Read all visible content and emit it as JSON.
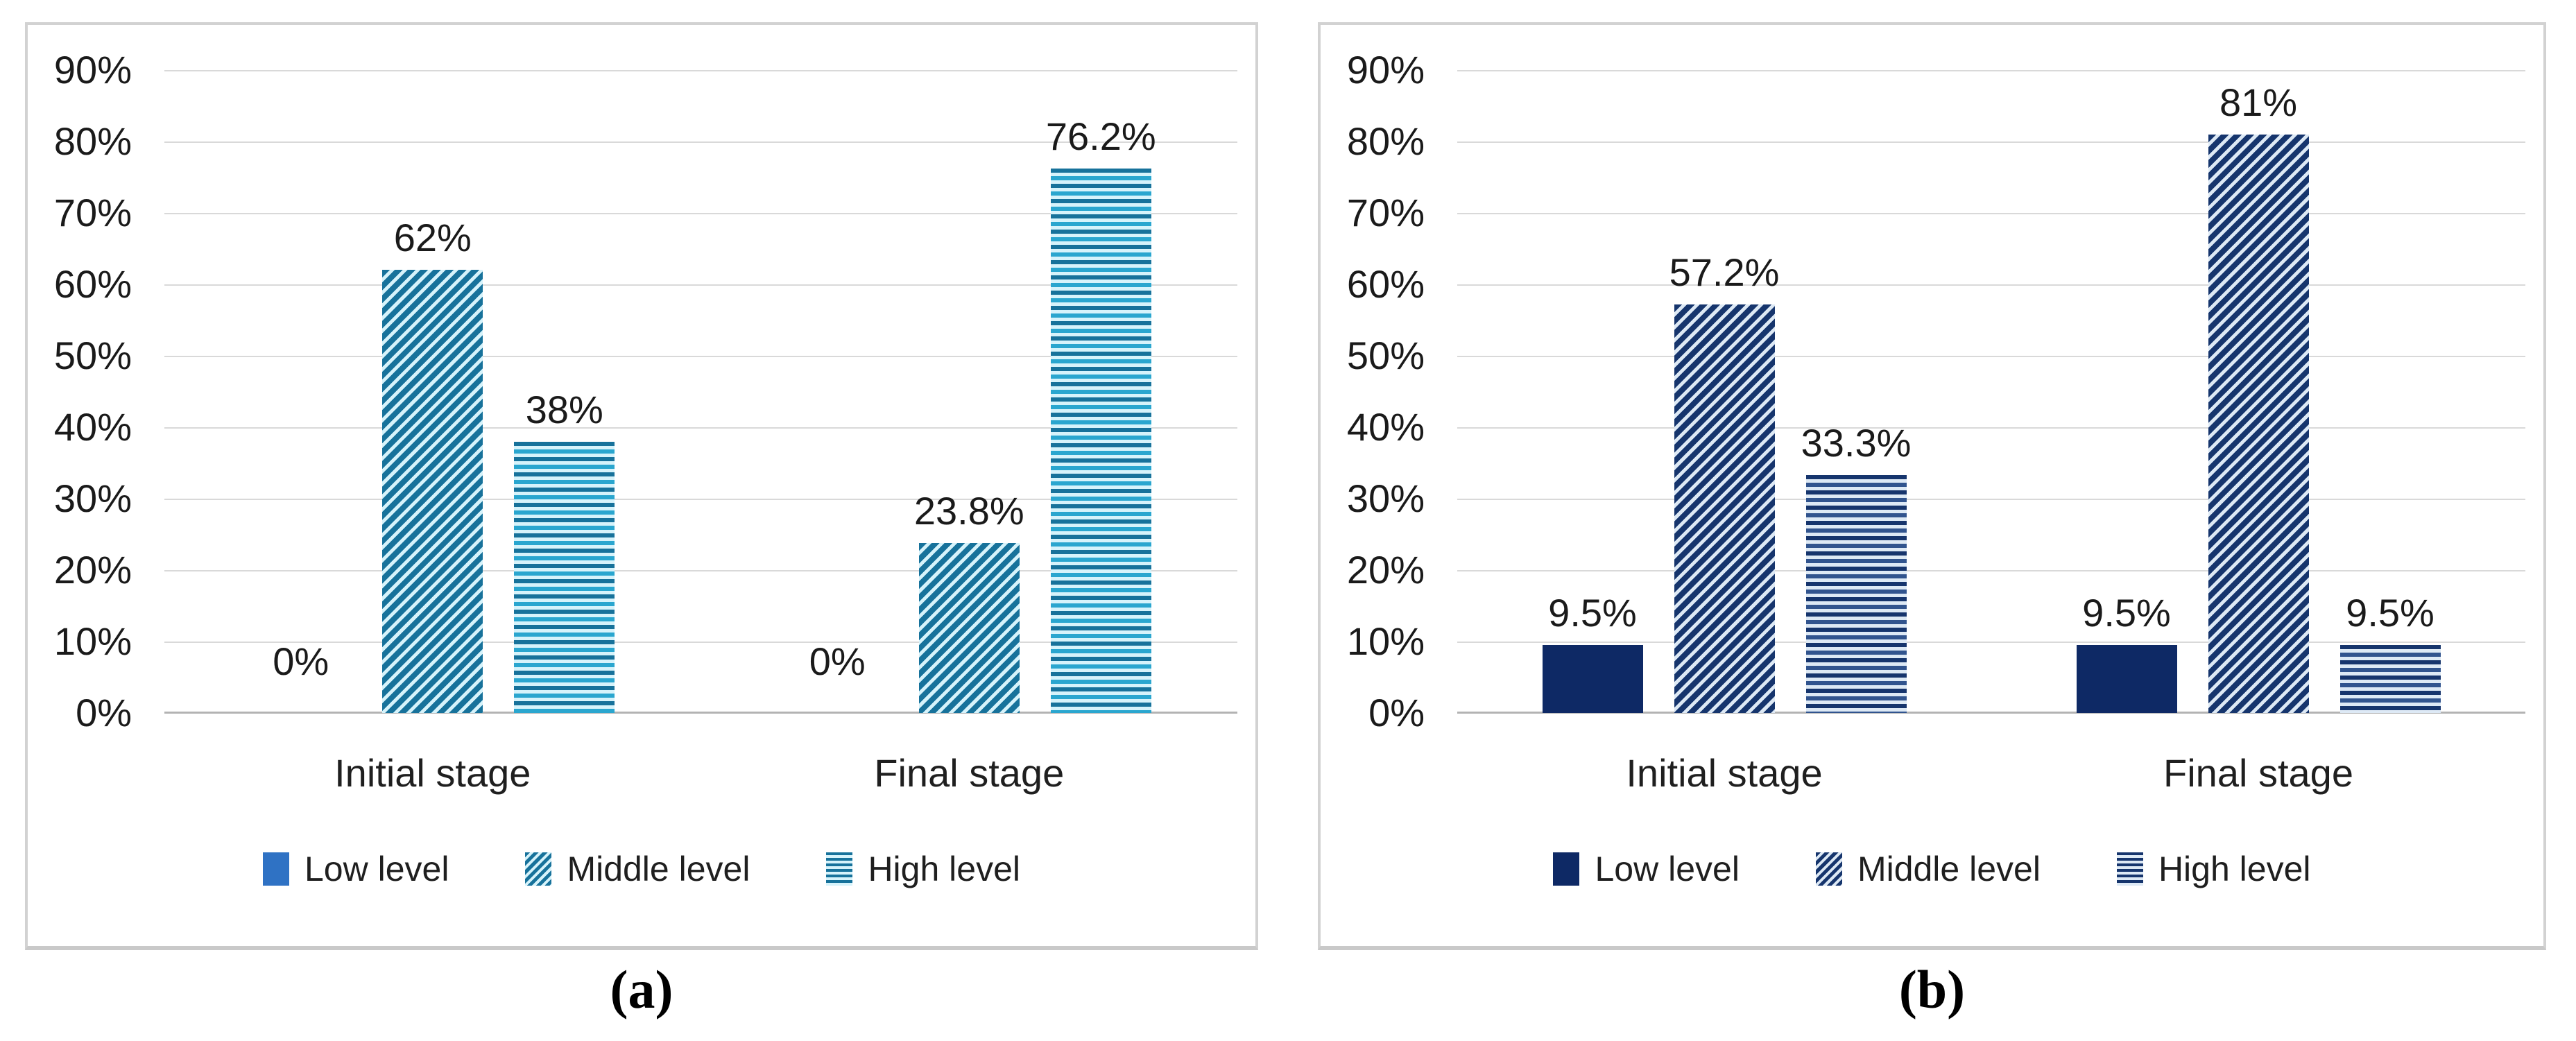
{
  "chart_data": [
    {
      "id": "a",
      "type": "bar",
      "title": "",
      "caption": "(a)",
      "categories": [
        "Initial stage",
        "Final stage"
      ],
      "series": [
        {
          "name": "Low level",
          "pattern": "solid",
          "values": [
            0,
            0
          ],
          "data_labels": [
            "0%",
            "0%"
          ]
        },
        {
          "name": "Middle level",
          "pattern": "diagonal",
          "values": [
            62,
            23.8
          ],
          "data_labels": [
            "62%",
            "23.8%"
          ]
        },
        {
          "name": "High level",
          "pattern": "horizontal",
          "values": [
            38,
            76.2
          ],
          "data_labels": [
            "38%",
            "76.2%"
          ]
        }
      ],
      "y_axis": {
        "min": 0,
        "max": 90,
        "step": 10,
        "unit": "%",
        "tick_labels": [
          "90%",
          "80%",
          "70%",
          "60%",
          "50%",
          "40%",
          "30%",
          "20%",
          "10%",
          "0%"
        ]
      },
      "grid": true,
      "legend": {
        "position": "bottom",
        "items": [
          "Low level",
          "Middle level",
          "High level"
        ]
      },
      "colors": {
        "solid": "#2f72c4",
        "stripe": "#17729b",
        "pattern_bg": "#d6f3fb",
        "stripe_alt": "#2aa6cf",
        "gridline": "#d9d9d9",
        "axis_line": "#b3b3b3"
      }
    },
    {
      "id": "b",
      "type": "bar",
      "title": "",
      "caption": "(b)",
      "categories": [
        "Initial stage",
        "Final stage"
      ],
      "series": [
        {
          "name": "Low level",
          "pattern": "solid",
          "values": [
            9.5,
            9.5
          ],
          "data_labels": [
            "9.5%",
            "9.5%"
          ]
        },
        {
          "name": "Middle level",
          "pattern": "diagonal",
          "values": [
            57.2,
            81
          ],
          "data_labels": [
            "57.2%",
            "81%"
          ]
        },
        {
          "name": "High level",
          "pattern": "horizontal",
          "values": [
            33.3,
            9.5
          ],
          "data_labels": [
            "33.3%",
            "9.5%"
          ]
        }
      ],
      "y_axis": {
        "min": 0,
        "max": 90,
        "step": 10,
        "unit": "%",
        "tick_labels": [
          "90%",
          "80%",
          "70%",
          "60%",
          "50%",
          "40%",
          "30%",
          "20%",
          "10%",
          "0%"
        ]
      },
      "grid": true,
      "legend": {
        "position": "bottom",
        "items": [
          "Low level",
          "Middle level",
          "High level"
        ]
      },
      "colors": {
        "solid": "#0e2965",
        "stripe": "#16356d",
        "pattern_bg": "#dde9f5",
        "stripe_alt": "#31548e",
        "gridline": "#d9d9d9",
        "axis_line": "#b3b3b3"
      }
    }
  ]
}
